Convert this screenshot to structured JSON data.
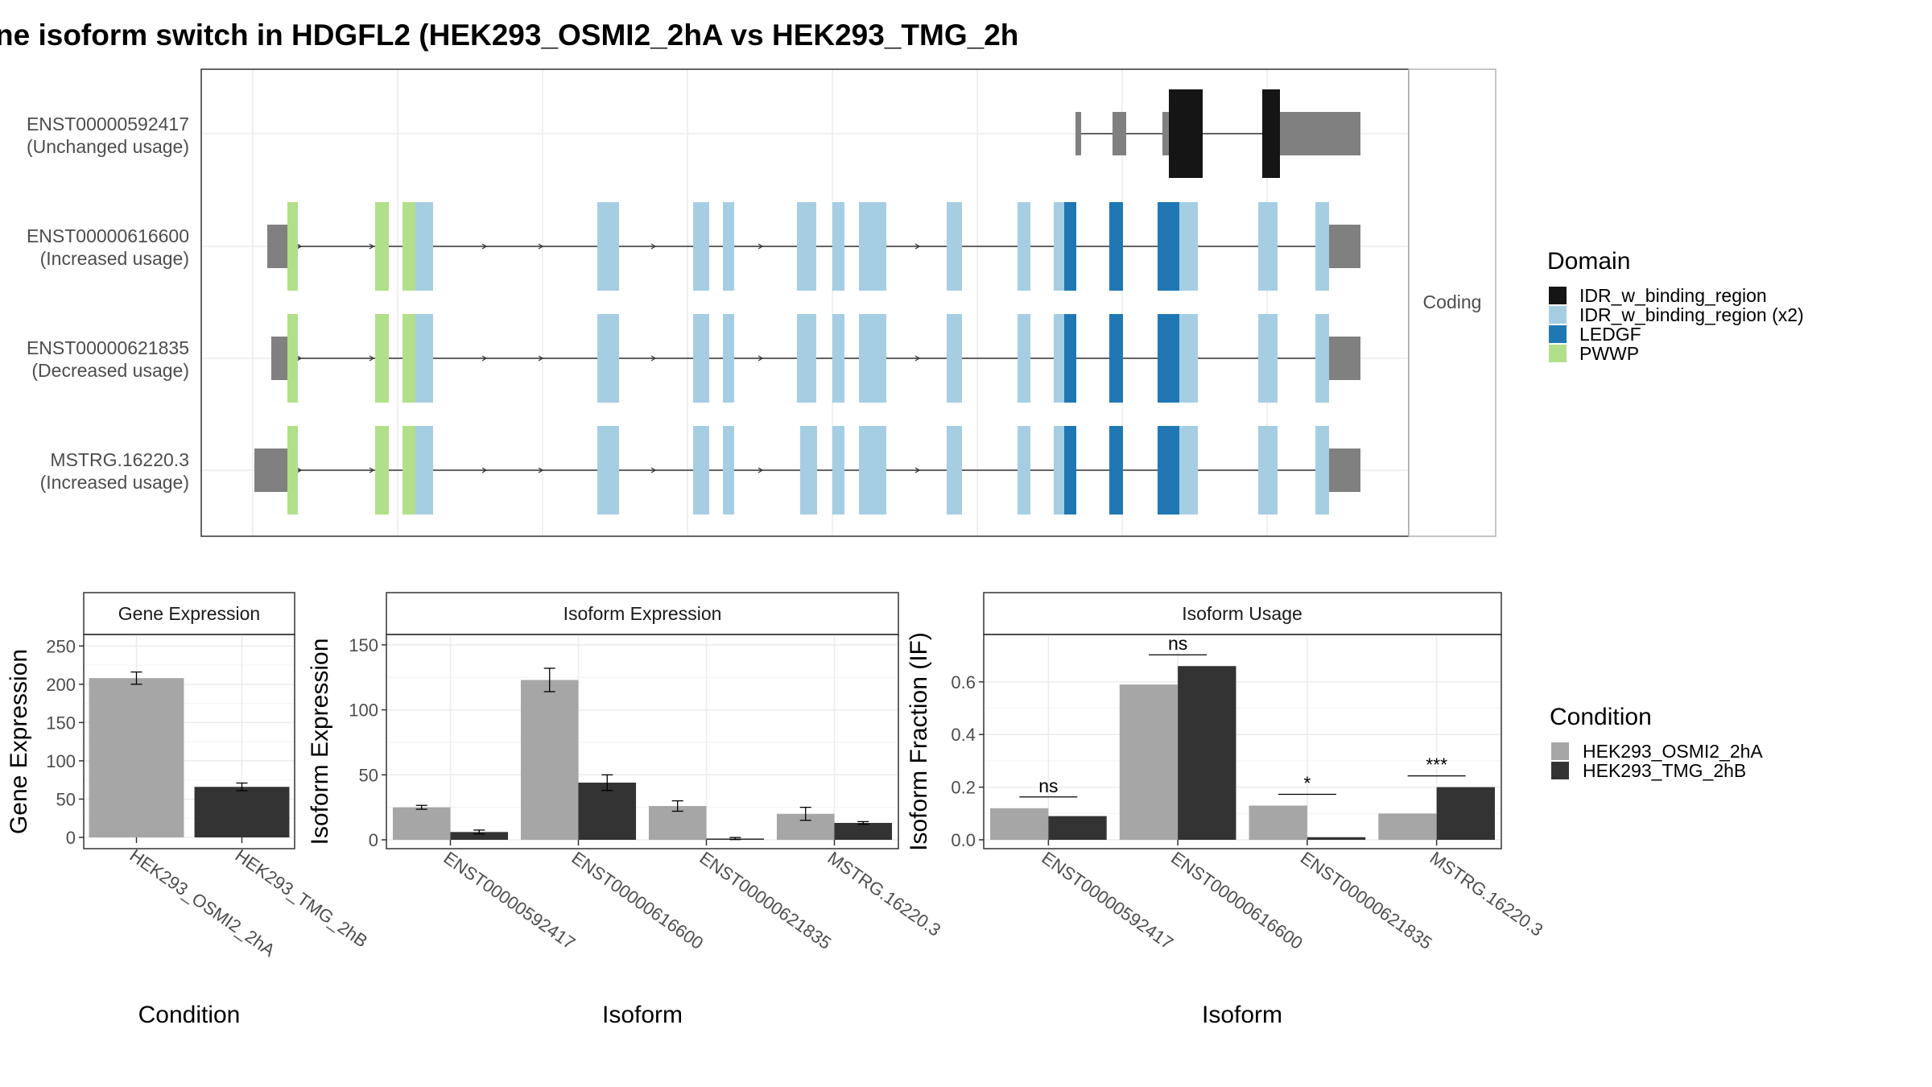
{
  "title": "ne isoform switch in HDGFL2 (HEK293_OSMI2_2hA vs HEK293_TMG_2h",
  "colors": {
    "cond_a": "#a6a6a6",
    "cond_b": "#333333",
    "utr": "#808080",
    "IDR_w_binding_region": "#151515",
    "IDR_w_binding_region_x2": "#a6cee3",
    "LEDGF": "#1f78b4",
    "PWWP": "#b2df8a"
  },
  "structure": {
    "facet_label": "Coding",
    "isoforms": [
      {
        "id": "ENST00000592417",
        "usage": "(Unchanged usage)"
      },
      {
        "id": "ENST00000616600",
        "usage": "(Increased usage)"
      },
      {
        "id": "ENST00000621835",
        "usage": "(Decreased usage)"
      },
      {
        "id": "MSTRG.16220.3",
        "usage": "(Increased usage)"
      }
    ]
  },
  "legend_domain": {
    "title": "Domain",
    "items": [
      {
        "label": "IDR_w_binding_region",
        "color_key": "IDR_w_binding_region"
      },
      {
        "label": "IDR_w_binding_region (x2)",
        "color_key": "IDR_w_binding_region_x2"
      },
      {
        "label": "LEDGF",
        "color_key": "LEDGF"
      },
      {
        "label": "PWWP",
        "color_key": "PWWP"
      }
    ]
  },
  "legend_condition": {
    "title": "Condition",
    "items": [
      "HEK293_OSMI2_2hA",
      "HEK293_TMG_2hB"
    ]
  },
  "chart_data": [
    {
      "type": "bar",
      "title": "Gene Expression",
      "xlabel": "Condition",
      "ylabel": "Gene Expression",
      "ylim": [
        0,
        265
      ],
      "yticks": [
        0,
        50,
        100,
        150,
        200,
        250
      ],
      "categories": [
        "HEK293_OSMI2_2hA",
        "HEK293_TMG_2hB"
      ],
      "series": [
        {
          "values": [
            208,
            66
          ],
          "error": [
            8,
            5
          ]
        }
      ]
    },
    {
      "type": "bar",
      "title": "Isoform Expression",
      "xlabel": "Isoform",
      "ylabel": "Isoform Expression",
      "ylim": [
        0,
        158
      ],
      "yticks": [
        0,
        50,
        100,
        150
      ],
      "categories": [
        "ENST00000592417",
        "ENST00000616600",
        "ENST00000621835",
        "MSTRG.16220.3"
      ],
      "series": [
        {
          "name": "HEK293_OSMI2_2hA",
          "values": [
            25,
            123,
            26,
            20
          ],
          "error": [
            1.5,
            9,
            4,
            5
          ]
        },
        {
          "name": "HEK293_TMG_2hB",
          "values": [
            6,
            44,
            1,
            13
          ],
          "error": [
            1.5,
            6,
            0.8,
            1
          ]
        }
      ]
    },
    {
      "type": "bar",
      "title": "Isoform Usage",
      "xlabel": "Isoform",
      "ylabel": "Isoform Fraction (IF)",
      "ylim": [
        0,
        0.78
      ],
      "yticks": [
        0.0,
        0.2,
        0.4,
        0.6
      ],
      "ytick_labels": [
        "0.0",
        "0.2",
        "0.4",
        "0.6"
      ],
      "categories": [
        "ENST00000592417",
        "ENST00000616600",
        "ENST00000621835",
        "MSTRG.16220.3"
      ],
      "series": [
        {
          "name": "HEK293_OSMI2_2hA",
          "values": [
            0.12,
            0.59,
            0.13,
            0.1
          ]
        },
        {
          "name": "HEK293_TMG_2hB",
          "values": [
            0.09,
            0.66,
            0.01,
            0.2
          ]
        }
      ],
      "significance": [
        "ns",
        "ns",
        "*",
        "***"
      ]
    }
  ]
}
